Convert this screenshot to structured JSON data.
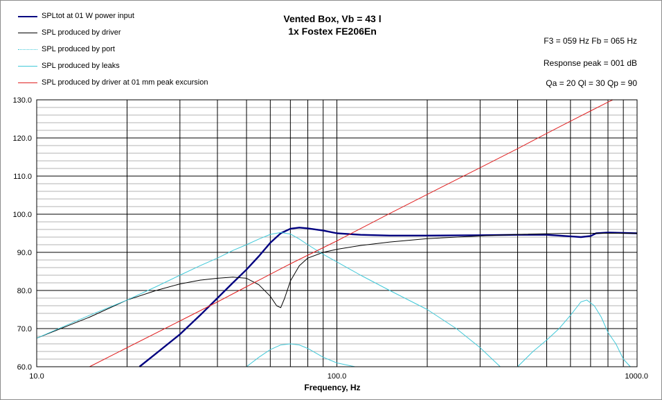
{
  "chart_data": {
    "type": "line",
    "title": "Vented Box, Vb = 43 l",
    "subtitle": "1x Fostex FE206En",
    "info": [
      "F3 = 059  Hz  Fb = 065  Hz",
      "Response  peak = 001 dB",
      "Qa = 20  Ql = 30  Qp = 90"
    ],
    "xlabel": "Frequency, Hz",
    "ylabel": "",
    "x_scale": "log",
    "xlim": [
      10,
      1000
    ],
    "ylim": [
      60,
      130
    ],
    "x_ticks": [
      "10.0",
      "100.0",
      "1000.0"
    ],
    "y_ticks": [
      "60.0",
      "70.0",
      "80.0",
      "90.0",
      "100.0",
      "110.0",
      "120.0",
      "130.0"
    ],
    "grid": true,
    "legend_position": "top-left",
    "series": [
      {
        "name": "SPLtot at 01 W power input",
        "color": "#000080",
        "points": [
          [
            22,
            60
          ],
          [
            25,
            63.5
          ],
          [
            30,
            68.5
          ],
          [
            35,
            73.5
          ],
          [
            40,
            78
          ],
          [
            45,
            82
          ],
          [
            50,
            85.5
          ],
          [
            55,
            89
          ],
          [
            60,
            92.5
          ],
          [
            65,
            95
          ],
          [
            70,
            96.2
          ],
          [
            75,
            96.5
          ],
          [
            80,
            96.3
          ],
          [
            90,
            95.7
          ],
          [
            100,
            95
          ],
          [
            120,
            94.6
          ],
          [
            150,
            94.4
          ],
          [
            200,
            94.4
          ],
          [
            300,
            94.5
          ],
          [
            400,
            94.6
          ],
          [
            500,
            94.6
          ],
          [
            600,
            94.2
          ],
          [
            650,
            94
          ],
          [
            700,
            94.3
          ],
          [
            730,
            95
          ],
          [
            800,
            95.2
          ],
          [
            900,
            95.1
          ],
          [
            1000,
            95
          ]
        ]
      },
      {
        "name": "SPL produced by driver",
        "color": "#000000",
        "points": [
          [
            10,
            67.5
          ],
          [
            15,
            73
          ],
          [
            20,
            77.5
          ],
          [
            25,
            80
          ],
          [
            30,
            81.7
          ],
          [
            35,
            82.7
          ],
          [
            40,
            83.2
          ],
          [
            45,
            83.5
          ],
          [
            50,
            83.2
          ],
          [
            55,
            81.5
          ],
          [
            60,
            78.5
          ],
          [
            63,
            76
          ],
          [
            65,
            75.5
          ],
          [
            67,
            78
          ],
          [
            70,
            82.5
          ],
          [
            75,
            86.5
          ],
          [
            80,
            88.5
          ],
          [
            90,
            90
          ],
          [
            100,
            90.8
          ],
          [
            120,
            91.8
          ],
          [
            150,
            92.7
          ],
          [
            200,
            93.6
          ],
          [
            300,
            94.3
          ],
          [
            400,
            94.7
          ],
          [
            600,
            95
          ],
          [
            1000,
            95
          ]
        ]
      },
      {
        "name": "SPL produced by port",
        "color": "#40c8d8",
        "points": [
          [
            10,
            67.5
          ],
          [
            15,
            73.5
          ],
          [
            20,
            77.5
          ],
          [
            25,
            81
          ],
          [
            30,
            84
          ],
          [
            35,
            86.5
          ],
          [
            40,
            88.5
          ],
          [
            45,
            90.5
          ],
          [
            50,
            92
          ],
          [
            55,
            93.5
          ],
          [
            60,
            94.7
          ],
          [
            65,
            95.2
          ],
          [
            70,
            94.8
          ],
          [
            75,
            93.5
          ],
          [
            80,
            92
          ],
          [
            90,
            89.5
          ],
          [
            100,
            87.5
          ],
          [
            120,
            84
          ],
          [
            150,
            80
          ],
          [
            200,
            75
          ],
          [
            250,
            70
          ],
          [
            300,
            65
          ],
          [
            350,
            60
          ]
        ]
      },
      {
        "name": "SPL produced by leaks",
        "color": "#40c8d8",
        "points": [
          [
            50,
            60
          ],
          [
            55,
            62.5
          ],
          [
            60,
            64.5
          ],
          [
            65,
            65.7
          ],
          [
            70,
            66
          ],
          [
            75,
            65.7
          ],
          [
            80,
            64.8
          ],
          [
            90,
            62.5
          ],
          [
            100,
            61
          ],
          [
            115,
            60
          ]
        ]
      },
      {
        "name": "SPL produced by leaks",
        "color": "#40c8d8",
        "points": [
          [
            400,
            60
          ],
          [
            450,
            64
          ],
          [
            500,
            67
          ],
          [
            550,
            70
          ],
          [
            600,
            73.5
          ],
          [
            650,
            77
          ],
          [
            680,
            77.5
          ],
          [
            720,
            76
          ],
          [
            760,
            73
          ],
          [
            800,
            69
          ],
          [
            850,
            66
          ],
          [
            900,
            62
          ],
          [
            950,
            60
          ]
        ]
      },
      {
        "name": "SPL produced by driver at 01 mm peak excursion",
        "color": "#e02020",
        "points": [
          [
            15,
            60
          ],
          [
            20,
            65
          ],
          [
            30,
            72
          ],
          [
            40,
            77
          ],
          [
            50,
            81
          ],
          [
            70,
            87
          ],
          [
            100,
            93
          ],
          [
            150,
            100.2
          ],
          [
            200,
            105.2
          ],
          [
            300,
            112.2
          ],
          [
            400,
            117.2
          ],
          [
            500,
            121.2
          ],
          [
            600,
            124.4
          ],
          [
            700,
            127.1
          ],
          [
            800,
            129.4
          ],
          [
            830,
            130
          ]
        ]
      }
    ]
  },
  "legend": [
    {
      "label": "SPLtot at 01 W power input",
      "color": "#000080"
    },
    {
      "label": "SPL produced by driver",
      "color": "#000000"
    },
    {
      "label": "SPL produced by port",
      "color": "#40c8d8"
    },
    {
      "label": "SPL produced by leaks",
      "color": "#40c8d8"
    },
    {
      "label": "SPL produced by driver at 01 mm peak excursion",
      "color": "#e02020"
    }
  ]
}
